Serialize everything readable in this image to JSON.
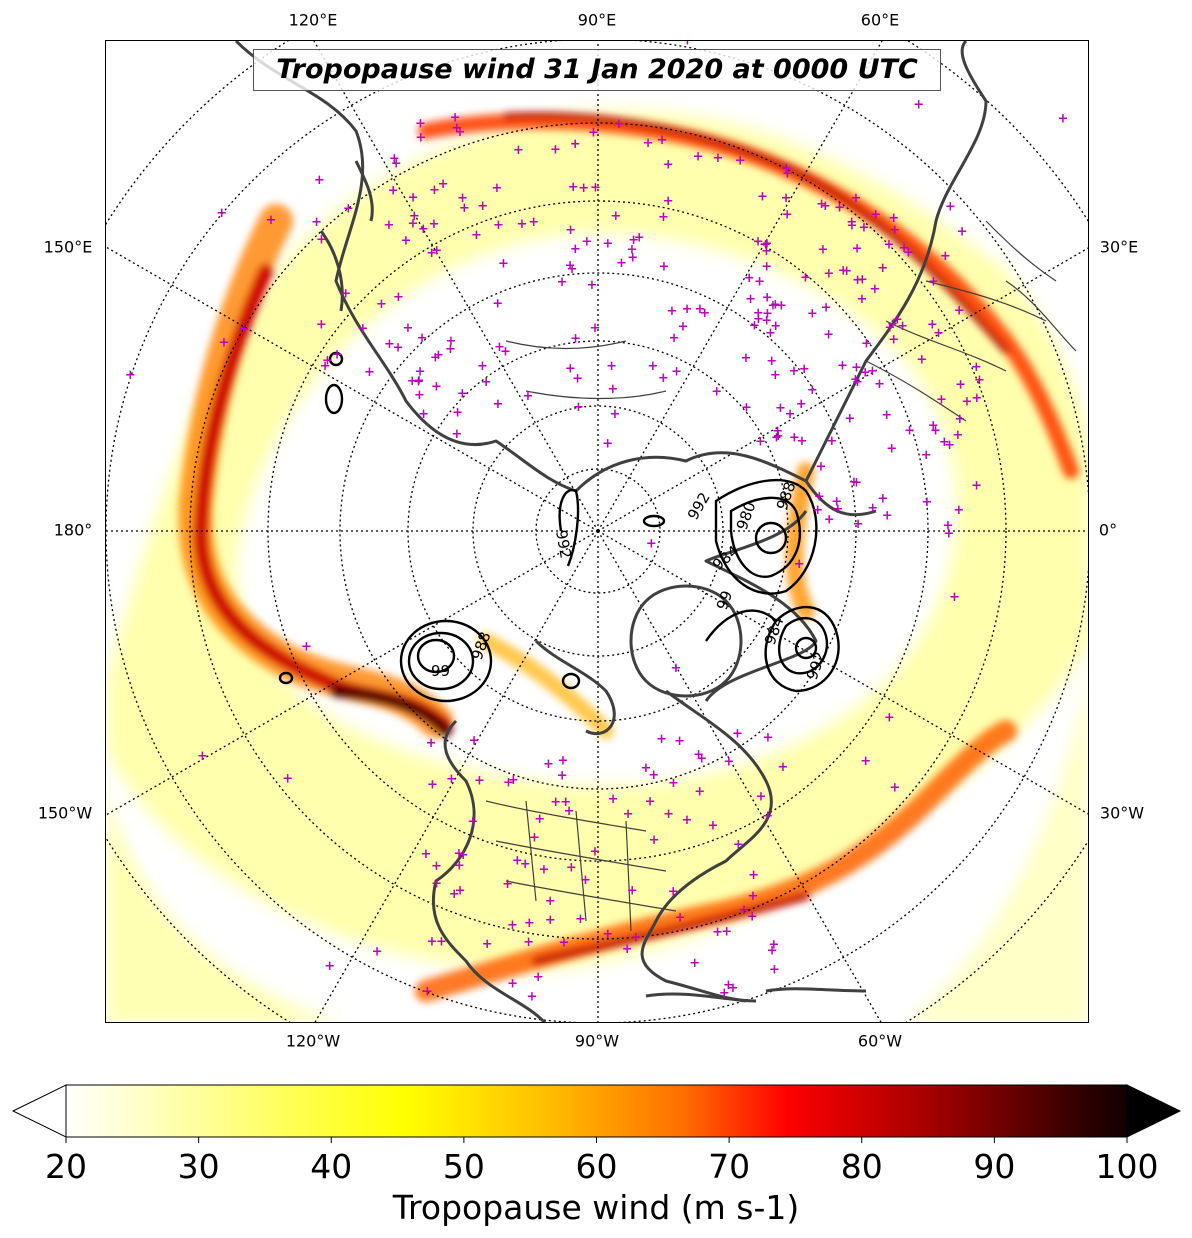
{
  "title": "Tropopause wind 31 Jan 2020 at 0000 UTC",
  "map": {
    "projection": "north-polar-stereographic",
    "central_longitude_bottom": "90°W",
    "gridlines": "dotted",
    "longitude_labels_top": [
      "120°E",
      "90°E",
      "60°E"
    ],
    "longitude_labels_bottom": [
      "120°W",
      "90°W",
      "60°W"
    ],
    "longitude_labels_left": [
      "150°E",
      "180°",
      "150°W"
    ],
    "longitude_labels_right": [
      "30°E",
      "0°",
      "30°W"
    ],
    "marker_color": "#c000c0",
    "marker_symbol": "+",
    "coastline_color": "#404040"
  },
  "pressure_contours": {
    "color": "#000000",
    "labels": [
      "992",
      "992",
      "980",
      "984",
      "988",
      "99",
      "984",
      "988",
      "99",
      "992"
    ]
  },
  "colorbar": {
    "label": "Tropopause wind (m s-1)",
    "ticks": [
      "20",
      "30",
      "40",
      "50",
      "60",
      "70",
      "80",
      "90",
      "100"
    ],
    "min": 20,
    "max": 100,
    "extend": "both",
    "colormap": "hot_r"
  }
}
